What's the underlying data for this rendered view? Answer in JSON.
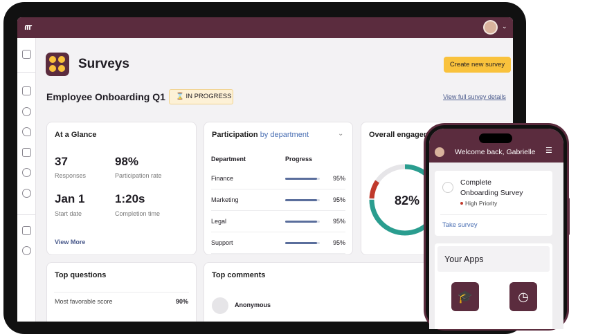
{
  "header": {
    "title": "Surveys",
    "button": "Create new survey"
  },
  "survey": {
    "name": "Employee Onboarding Q1",
    "status": "IN PROGRESS",
    "link": "View full survey details"
  },
  "glance": {
    "title": "At a Glance",
    "stats": [
      {
        "value": "37",
        "label": "Responses"
      },
      {
        "value": "98%",
        "label": "Participation rate"
      },
      {
        "value": "Jan 1",
        "label": "Start date"
      },
      {
        "value": "1:20s",
        "label": "Completion time"
      }
    ],
    "link": "View More"
  },
  "participation": {
    "title": "Participation",
    "title_suffix": "by department",
    "columns": [
      "Department",
      "Progress"
    ],
    "rows": [
      {
        "department": "Finance",
        "progress": "95%"
      },
      {
        "department": "Marketing",
        "progress": "95%"
      },
      {
        "department": "Legal",
        "progress": "95%"
      },
      {
        "department": "Support",
        "progress": "95%"
      }
    ]
  },
  "engagement": {
    "title": "Overall engagement",
    "value": "82%"
  },
  "top_questions": {
    "title": "Top questions",
    "rows": [
      {
        "label": "Most favorable score",
        "value": "90%"
      }
    ]
  },
  "top_comments": {
    "title": "Top comments",
    "author": "Anonymous"
  },
  "phone": {
    "greeting": "Welcome back, Gabrielle",
    "task": {
      "title_lines": [
        "Complete",
        "Onboarding Survey"
      ],
      "priority": "High Priority",
      "action": "Take survey"
    },
    "apps_title": "Your Apps"
  }
}
